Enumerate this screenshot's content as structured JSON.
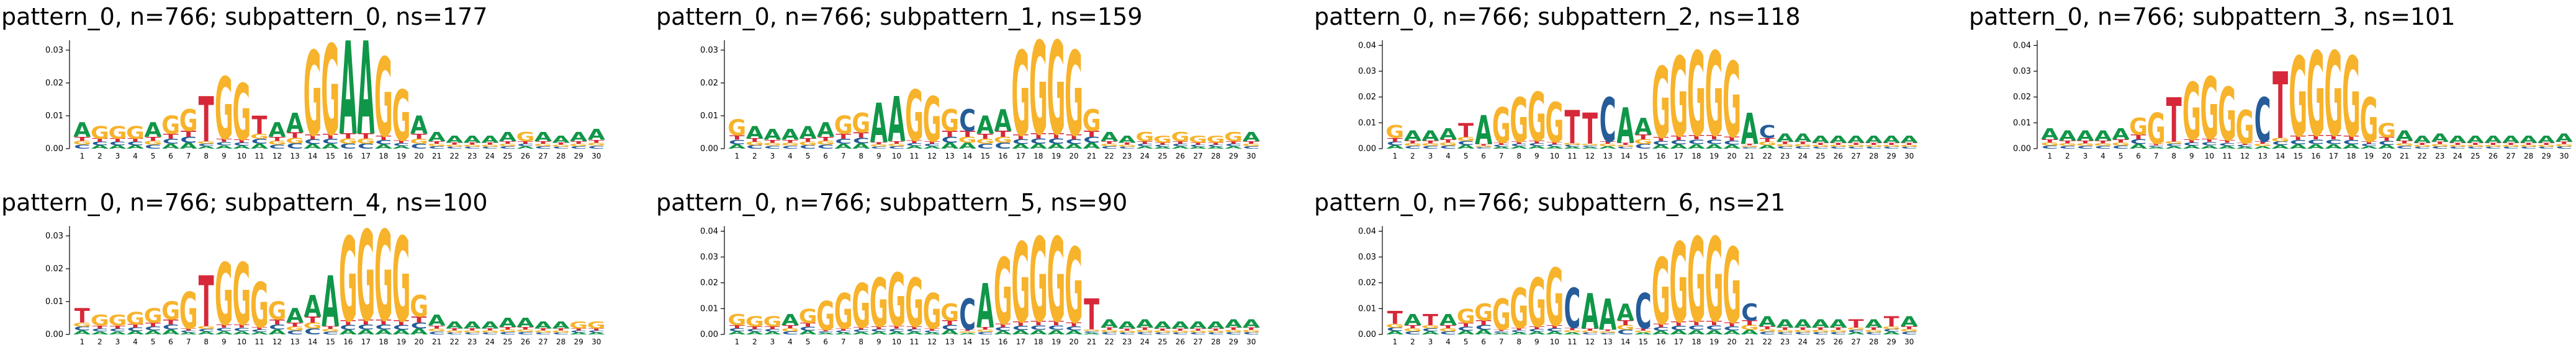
{
  "letter_colors": {
    "A": "#109648",
    "C": "#255C99",
    "G": "#F7B32B",
    "T": "#D62839"
  },
  "chart_data": [
    {
      "type": "sequence-logo",
      "title": "pattern_0, n=766; subpattern_0, ns=177",
      "ylim": [
        0,
        0.033
      ],
      "yticks": [
        "0.00",
        "0.01",
        "0.02",
        "0.03"
      ],
      "ytick_values": [
        0,
        0.01,
        0.02,
        0.03
      ],
      "positions": [
        "1",
        "2",
        "3",
        "4",
        "5",
        "6",
        "7",
        "8",
        "9",
        "10",
        "11",
        "12",
        "13",
        "14",
        "15",
        "16",
        "17",
        "18",
        "19",
        "20",
        "21",
        "22",
        "23",
        "24",
        "25",
        "26",
        "27",
        "28",
        "29",
        "30"
      ],
      "dominant": [
        "A",
        "G",
        "G",
        "G",
        "A",
        "G",
        "G",
        "T",
        "G",
        "G",
        "T",
        "A",
        "A",
        "G",
        "G",
        "A",
        "A",
        "G",
        "G",
        "A",
        "A",
        "A",
        "A",
        "A",
        "A",
        "G",
        "A",
        "A",
        "A",
        "A"
      ],
      "heights": [
        0.008,
        0.007,
        0.007,
        0.007,
        0.008,
        0.01,
        0.012,
        0.016,
        0.022,
        0.02,
        0.01,
        0.008,
        0.011,
        0.03,
        0.032,
        0.033,
        0.033,
        0.028,
        0.018,
        0.01,
        0.005,
        0.004,
        0.004,
        0.004,
        0.005,
        0.005,
        0.005,
        0.004,
        0.005,
        0.006
      ]
    },
    {
      "type": "sequence-logo",
      "title": "pattern_0, n=766; subpattern_1, ns=159",
      "ylim": [
        0,
        0.033
      ],
      "yticks": [
        "0.00",
        "0.01",
        "0.02",
        "0.03"
      ],
      "ytick_values": [
        0,
        0.01,
        0.02,
        0.03
      ],
      "positions": [
        "1",
        "2",
        "3",
        "4",
        "5",
        "6",
        "7",
        "8",
        "9",
        "10",
        "11",
        "12",
        "13",
        "14",
        "15",
        "16",
        "17",
        "18",
        "19",
        "20",
        "21",
        "22",
        "23",
        "24",
        "25",
        "26",
        "27",
        "28",
        "29",
        "30"
      ],
      "dominant": [
        "G",
        "A",
        "A",
        "A",
        "A",
        "A",
        "G",
        "G",
        "A",
        "A",
        "G",
        "G",
        "G",
        "C",
        "A",
        "A",
        "G",
        "G",
        "G",
        "G",
        "G",
        "A",
        "A",
        "G",
        "G",
        "G",
        "G",
        "G",
        "G",
        "A"
      ],
      "heights": [
        0.009,
        0.007,
        0.006,
        0.006,
        0.007,
        0.008,
        0.01,
        0.011,
        0.014,
        0.016,
        0.018,
        0.016,
        0.012,
        0.012,
        0.01,
        0.012,
        0.03,
        0.033,
        0.033,
        0.03,
        0.012,
        0.005,
        0.004,
        0.005,
        0.004,
        0.005,
        0.004,
        0.004,
        0.005,
        0.005
      ]
    },
    {
      "type": "sequence-logo",
      "title": "pattern_0, n=766; subpattern_2, ns=118",
      "ylim": [
        0,
        0.042
      ],
      "yticks": [
        "0.00",
        "0.01",
        "0.02",
        "0.03",
        "0.04"
      ],
      "ytick_values": [
        0,
        0.01,
        0.02,
        0.03,
        0.04
      ],
      "positions": [
        "1",
        "2",
        "3",
        "4",
        "5",
        "6",
        "7",
        "8",
        "9",
        "10",
        "11",
        "12",
        "13",
        "14",
        "15",
        "16",
        "17",
        "18",
        "19",
        "20",
        "21",
        "22",
        "23",
        "24",
        "25",
        "26",
        "27",
        "28",
        "29",
        "30"
      ],
      "dominant": [
        "G",
        "A",
        "A",
        "A",
        "T",
        "A",
        "G",
        "G",
        "G",
        "G",
        "T",
        "T",
        "C",
        "A",
        "A",
        "G",
        "G",
        "G",
        "G",
        "G",
        "A",
        "C",
        "A",
        "A",
        "A",
        "A",
        "A",
        "A",
        "A",
        "A"
      ],
      "heights": [
        0.009,
        0.007,
        0.007,
        0.008,
        0.01,
        0.013,
        0.016,
        0.02,
        0.022,
        0.018,
        0.015,
        0.014,
        0.02,
        0.016,
        0.012,
        0.032,
        0.036,
        0.038,
        0.038,
        0.034,
        0.014,
        0.009,
        0.006,
        0.006,
        0.005,
        0.005,
        0.005,
        0.005,
        0.005,
        0.005
      ]
    },
    {
      "type": "sequence-logo",
      "title": "pattern_0, n=766; subpattern_3, ns=101",
      "ylim": [
        0,
        0.042
      ],
      "yticks": [
        "0.00",
        "0.01",
        "0.02",
        "0.03",
        "0.04"
      ],
      "ytick_values": [
        0,
        0.01,
        0.02,
        0.03,
        0.04
      ],
      "positions": [
        "1",
        "2",
        "3",
        "4",
        "5",
        "6",
        "7",
        "8",
        "9",
        "10",
        "11",
        "12",
        "13",
        "14",
        "15",
        "16",
        "17",
        "18",
        "19",
        "20",
        "21",
        "22",
        "23",
        "24",
        "25",
        "26",
        "27",
        "28",
        "29",
        "30"
      ],
      "dominant": [
        "A",
        "A",
        "A",
        "A",
        "A",
        "G",
        "G",
        "T",
        "G",
        "G",
        "G",
        "G",
        "C",
        "T",
        "G",
        "G",
        "G",
        "G",
        "G",
        "G",
        "A",
        "A",
        "A",
        "A",
        "A",
        "A",
        "A",
        "A",
        "A",
        "A"
      ],
      "heights": [
        0.008,
        0.007,
        0.007,
        0.007,
        0.008,
        0.012,
        0.014,
        0.02,
        0.026,
        0.028,
        0.024,
        0.015,
        0.02,
        0.03,
        0.036,
        0.038,
        0.038,
        0.036,
        0.02,
        0.01,
        0.007,
        0.005,
        0.006,
        0.005,
        0.005,
        0.005,
        0.005,
        0.005,
        0.005,
        0.006
      ]
    },
    {
      "type": "sequence-logo",
      "title": "pattern_0, n=766; subpattern_4, ns=100",
      "ylim": [
        0,
        0.033
      ],
      "yticks": [
        "0.00",
        "0.01",
        "0.02",
        "0.03"
      ],
      "ytick_values": [
        0,
        0.01,
        0.02,
        0.03
      ],
      "positions": [
        "1",
        "2",
        "3",
        "4",
        "5",
        "6",
        "7",
        "8",
        "9",
        "10",
        "11",
        "12",
        "13",
        "14",
        "15",
        "16",
        "17",
        "18",
        "19",
        "20",
        "21",
        "22",
        "23",
        "24",
        "25",
        "26",
        "27",
        "28",
        "29",
        "30"
      ],
      "dominant": [
        "T",
        "G",
        "G",
        "G",
        "G",
        "G",
        "G",
        "T",
        "G",
        "G",
        "G",
        "G",
        "A",
        "A",
        "A",
        "G",
        "G",
        "G",
        "G",
        "G",
        "A",
        "A",
        "A",
        "A",
        "A",
        "A",
        "A",
        "A",
        "G",
        "G"
      ],
      "heights": [
        0.008,
        0.006,
        0.006,
        0.007,
        0.008,
        0.01,
        0.013,
        0.018,
        0.022,
        0.022,
        0.016,
        0.01,
        0.008,
        0.012,
        0.018,
        0.03,
        0.032,
        0.032,
        0.03,
        0.012,
        0.006,
        0.004,
        0.004,
        0.004,
        0.005,
        0.005,
        0.004,
        0.004,
        0.004,
        0.004
      ]
    },
    {
      "type": "sequence-logo",
      "title": "pattern_0, n=766; subpattern_5, ns=90",
      "ylim": [
        0,
        0.042
      ],
      "yticks": [
        "0.00",
        "0.01",
        "0.02",
        "0.03",
        "0.04"
      ],
      "ytick_values": [
        0,
        0.01,
        0.02,
        0.03,
        0.04
      ],
      "positions": [
        "1",
        "2",
        "3",
        "4",
        "5",
        "6",
        "7",
        "8",
        "9",
        "10",
        "11",
        "12",
        "13",
        "14",
        "15",
        "16",
        "17",
        "18",
        "19",
        "20",
        "21",
        "22",
        "23",
        "24",
        "25",
        "26",
        "27",
        "28",
        "29",
        "30"
      ],
      "dominant": [
        "G",
        "G",
        "G",
        "A",
        "G",
        "G",
        "G",
        "G",
        "G",
        "G",
        "G",
        "G",
        "G",
        "C",
        "A",
        "G",
        "G",
        "G",
        "G",
        "G",
        "T",
        "A",
        "A",
        "A",
        "A",
        "A",
        "A",
        "A",
        "A",
        "A"
      ],
      "heights": [
        0.008,
        0.007,
        0.007,
        0.008,
        0.01,
        0.013,
        0.016,
        0.02,
        0.022,
        0.024,
        0.022,
        0.016,
        0.012,
        0.014,
        0.02,
        0.03,
        0.036,
        0.038,
        0.038,
        0.034,
        0.014,
        0.006,
        0.005,
        0.006,
        0.005,
        0.005,
        0.005,
        0.005,
        0.006,
        0.006
      ]
    },
    {
      "type": "sequence-logo",
      "title": "pattern_0, n=766; subpattern_6, ns=21",
      "ylim": [
        0,
        0.042
      ],
      "yticks": [
        "0.00",
        "0.01",
        "0.02",
        "0.03",
        "0.04"
      ],
      "ytick_values": [
        0,
        0.01,
        0.02,
        0.03,
        0.04
      ],
      "positions": [
        "1",
        "2",
        "3",
        "4",
        "5",
        "6",
        "7",
        "8",
        "9",
        "10",
        "11",
        "12",
        "13",
        "14",
        "15",
        "16",
        "17",
        "18",
        "19",
        "20",
        "21",
        "22",
        "23",
        "24",
        "25",
        "26",
        "27",
        "28",
        "29",
        "30"
      ],
      "dominant": [
        "T",
        "A",
        "T",
        "A",
        "G",
        "G",
        "G",
        "G",
        "G",
        "G",
        "C",
        "A",
        "A",
        "A",
        "C",
        "G",
        "G",
        "G",
        "G",
        "G",
        "C",
        "A",
        "A",
        "A",
        "A",
        "A",
        "T",
        "A",
        "T",
        "A"
      ],
      "heights": [
        0.009,
        0.008,
        0.008,
        0.008,
        0.01,
        0.012,
        0.014,
        0.018,
        0.022,
        0.026,
        0.018,
        0.016,
        0.014,
        0.012,
        0.016,
        0.03,
        0.036,
        0.038,
        0.038,
        0.034,
        0.012,
        0.007,
        0.006,
        0.006,
        0.006,
        0.006,
        0.006,
        0.006,
        0.007,
        0.007
      ]
    }
  ]
}
